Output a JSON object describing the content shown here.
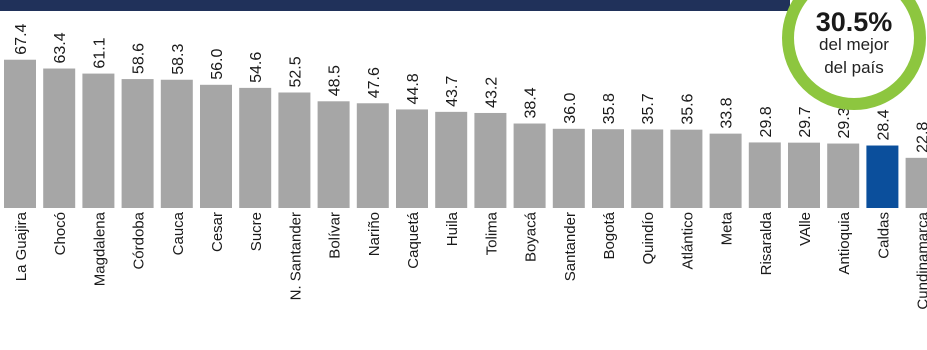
{
  "chart_data": {
    "type": "bar",
    "categories": [
      "La Guajira",
      "Chocó",
      "Magdalena",
      "Córdoba",
      "Cauca",
      "Cesar",
      "Sucre",
      "N. Santander",
      "Bolívar",
      "Nariño",
      "Caquetá",
      "Huila",
      "Tolima",
      "Boyacá",
      "Santander",
      "Bogotá",
      "Quindío",
      "Atlántico",
      "Meta",
      "Risaralda",
      "VAlle",
      "Antioquia",
      "Caldas",
      "Cundinamarca"
    ],
    "values": [
      67.4,
      63.4,
      61.1,
      58.6,
      58.3,
      56.0,
      54.6,
      52.5,
      48.5,
      47.6,
      44.8,
      43.7,
      43.2,
      38.4,
      36.0,
      35.8,
      35.7,
      35.6,
      33.8,
      29.8,
      29.7,
      29.3,
      28.4,
      22.8
    ],
    "value_labels": [
      "67.4",
      "63.4",
      "61.1",
      "58.6",
      "58.3",
      "56.0",
      "54.6",
      "52.5",
      "48.5",
      "47.6",
      "44.8",
      "43.7",
      "43.2",
      "38.4",
      "36.0",
      "35.8",
      "35.7",
      "35.6",
      "33.8",
      "29.8",
      "29.7",
      "29.3",
      "28.4",
      "22.8"
    ],
    "highlight": "Caldas",
    "colors": {
      "bar": "#a6a6a6",
      "highlight": "#0b4f9c",
      "text": "#1a1a1a"
    },
    "title": "",
    "xlabel": "",
    "ylabel": "",
    "grid": false,
    "legend": "none"
  },
  "badge": {
    "value": "30.5%",
    "line1": "del mejor",
    "line2": "del país",
    "ring_color": "#8dc63f"
  }
}
